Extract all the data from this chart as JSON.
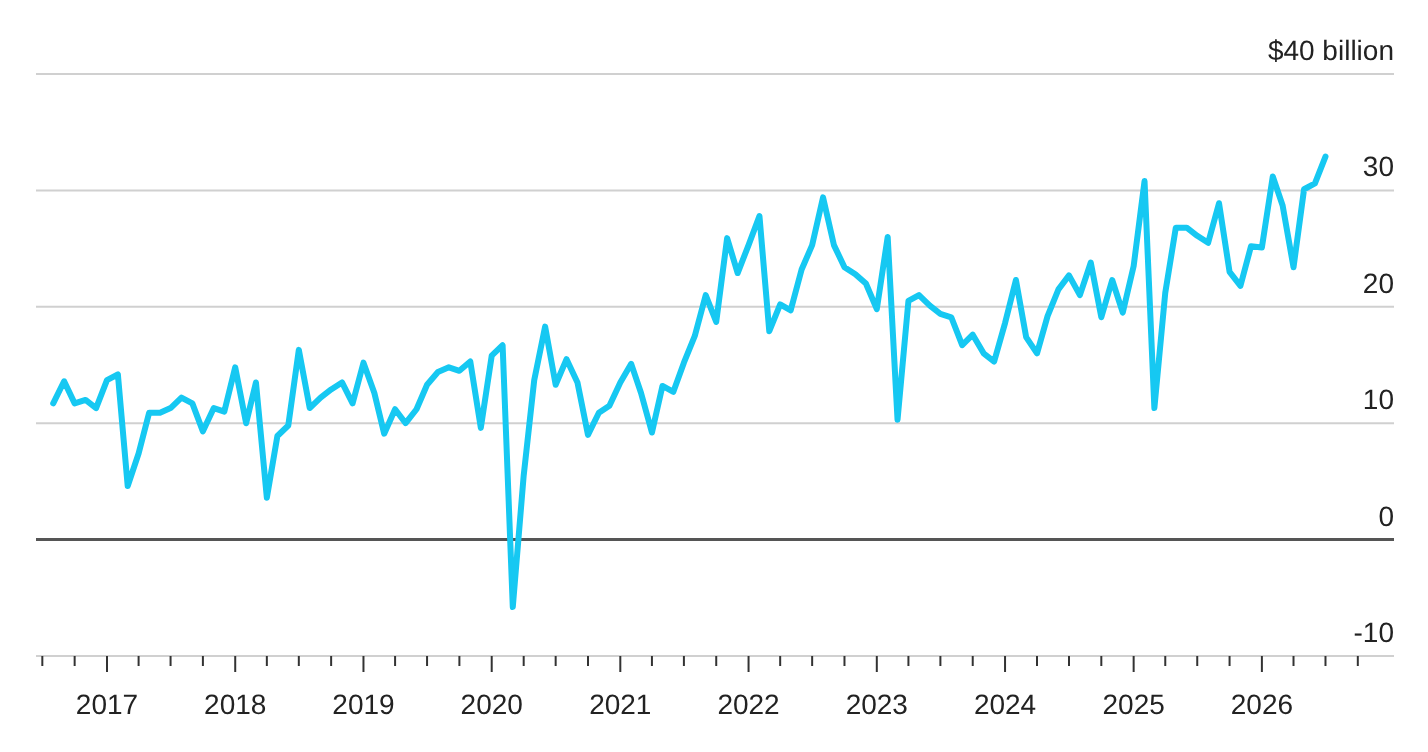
{
  "chart_data": {
    "type": "line",
    "grid": "y",
    "x": [
      "2016-08",
      "2016-09",
      "2016-10",
      "2016-11",
      "2016-12",
      "2017-01",
      "2017-02",
      "2017-03",
      "2017-04",
      "2017-05",
      "2017-06",
      "2017-07",
      "2017-08",
      "2017-09",
      "2017-10",
      "2017-11",
      "2017-12",
      "2018-01",
      "2018-02",
      "2018-03",
      "2018-04",
      "2018-05",
      "2018-06",
      "2018-07",
      "2018-08",
      "2018-09",
      "2018-10",
      "2018-11",
      "2018-12",
      "2019-01",
      "2019-02",
      "2019-03",
      "2019-04",
      "2019-05",
      "2019-06",
      "2019-07",
      "2019-08",
      "2019-09",
      "2019-10",
      "2019-11",
      "2019-12",
      "2020-01",
      "2020-02",
      "2020-03",
      "2020-04",
      "2020-05",
      "2020-06",
      "2020-07",
      "2020-08",
      "2020-09",
      "2020-10",
      "2020-11",
      "2020-12",
      "2021-01",
      "2021-02",
      "2021-03",
      "2021-04",
      "2021-05",
      "2021-06",
      "2021-07",
      "2021-08",
      "2021-09",
      "2021-10",
      "2021-11",
      "2021-12",
      "2022-01",
      "2022-02",
      "2022-03",
      "2022-04",
      "2022-05",
      "2022-06",
      "2022-07",
      "2022-08",
      "2022-09",
      "2022-10",
      "2022-11",
      "2022-12",
      "2023-01",
      "2023-02",
      "2023-03",
      "2023-04",
      "2023-05",
      "2023-06",
      "2023-07",
      "2023-08",
      "2023-09",
      "2023-10",
      "2023-11",
      "2023-12",
      "2024-01",
      "2024-02",
      "2024-03",
      "2024-04",
      "2024-05",
      "2024-06",
      "2024-07",
      "2024-08",
      "2024-09",
      "2024-10",
      "2024-11",
      "2024-12",
      "2025-01",
      "2025-02",
      "2025-03",
      "2025-04",
      "2025-05",
      "2025-06",
      "2025-07",
      "2025-08",
      "2025-09",
      "2025-10",
      "2025-11",
      "2025-12",
      "2026-01",
      "2026-02",
      "2026-03",
      "2026-04",
      "2026-05",
      "2026-06",
      "2026-07"
    ],
    "series": [
      {
        "color": "#16c8f2",
        "values": [
          11.7,
          13.6,
          11.7,
          12.0,
          11.3,
          13.7,
          14.2,
          4.6,
          7.4,
          10.9,
          10.9,
          11.3,
          12.2,
          11.7,
          9.3,
          11.3,
          11.0,
          14.8,
          10.0,
          13.5,
          3.6,
          8.9,
          9.8,
          16.3,
          11.3,
          12.2,
          12.9,
          13.5,
          11.7,
          15.2,
          12.6,
          9.1,
          11.2,
          10.0,
          11.2,
          13.3,
          14.4,
          14.8,
          14.5,
          15.3,
          9.6,
          15.8,
          16.7,
          -5.8,
          5.5,
          13.7,
          18.3,
          13.3,
          15.5,
          13.5,
          9.0,
          10.9,
          11.5,
          13.5,
          15.1,
          12.6,
          9.2,
          13.2,
          12.7,
          15.2,
          17.5,
          21.0,
          18.7,
          25.9,
          22.9,
          25.3,
          27.8,
          17.9,
          20.2,
          19.7,
          23.2,
          25.3,
          29.4,
          25.3,
          23.4,
          22.8,
          22.0,
          19.8,
          26.0,
          10.3,
          20.5,
          21.0,
          20.1,
          19.4,
          19.1,
          16.7,
          17.6,
          16.0,
          15.3,
          18.6,
          22.3,
          17.4,
          16.0,
          19.2,
          21.5,
          22.7,
          21.0,
          23.8,
          19.1,
          22.3,
          19.5,
          23.5,
          30.8,
          11.3,
          21.2,
          26.8,
          26.8,
          26.1,
          25.5,
          28.9,
          23.0,
          21.8,
          25.2,
          25.1,
          31.2,
          28.7,
          23.4,
          30.1,
          30.6,
          32.9
        ]
      }
    ],
    "xlim": [
      "2016-06-13",
      "2027-01-12"
    ],
    "xticks": [
      {
        "value": "2016-07-01",
        "label": null
      },
      {
        "value": "2016-10-01",
        "label": null
      },
      {
        "value": "2017-01-01",
        "label": "2017"
      },
      {
        "value": "2017-04-01",
        "label": null
      },
      {
        "value": "2017-07-01",
        "label": null
      },
      {
        "value": "2017-10-01",
        "label": null
      },
      {
        "value": "2018-01-01",
        "label": "2018"
      },
      {
        "value": "2018-04-01",
        "label": null
      },
      {
        "value": "2018-07-01",
        "label": null
      },
      {
        "value": "2018-10-01",
        "label": null
      },
      {
        "value": "2019-01-01",
        "label": "2019"
      },
      {
        "value": "2019-04-01",
        "label": null
      },
      {
        "value": "2019-07-01",
        "label": null
      },
      {
        "value": "2019-10-01",
        "label": null
      },
      {
        "value": "2020-01-01",
        "label": "2020"
      },
      {
        "value": "2020-04-01",
        "label": null
      },
      {
        "value": "2020-07-01",
        "label": null
      },
      {
        "value": "2020-10-01",
        "label": null
      },
      {
        "value": "2021-01-01",
        "label": "2021"
      },
      {
        "value": "2021-04-01",
        "label": null
      },
      {
        "value": "2021-07-01",
        "label": null
      },
      {
        "value": "2021-10-01",
        "label": null
      },
      {
        "value": "2022-01-01",
        "label": "2022"
      },
      {
        "value": "2022-04-01",
        "label": null
      },
      {
        "value": "2022-07-01",
        "label": null
      },
      {
        "value": "2022-10-01",
        "label": null
      },
      {
        "value": "2023-01-01",
        "label": "2023"
      },
      {
        "value": "2023-04-01",
        "label": null
      },
      {
        "value": "2023-07-01",
        "label": null
      },
      {
        "value": "2023-10-01",
        "label": null
      },
      {
        "value": "2024-01-01",
        "label": "2024"
      },
      {
        "value": "2024-04-01",
        "label": null
      },
      {
        "value": "2024-07-01",
        "label": null
      },
      {
        "value": "2024-10-01",
        "label": null
      },
      {
        "value": "2025-01-01",
        "label": "2025"
      },
      {
        "value": "2025-04-01",
        "label": null
      },
      {
        "value": "2025-07-01",
        "label": null
      },
      {
        "value": "2025-10-01",
        "label": null
      },
      {
        "value": "2026-01-01",
        "label": "2026"
      },
      {
        "value": "2026-04-01",
        "label": null
      },
      {
        "value": "2026-07-01",
        "label": null
      },
      {
        "value": "2026-10-01",
        "label": null
      }
    ],
    "ylim": [
      -10,
      40
    ],
    "yticks": [
      -10,
      0,
      10,
      20,
      30,
      {
        "value": 40,
        "label": "$40 billion"
      }
    ],
    "ref_lines": [
      {
        "axis": "y",
        "value": 0,
        "color": "#555555"
      }
    ]
  }
}
